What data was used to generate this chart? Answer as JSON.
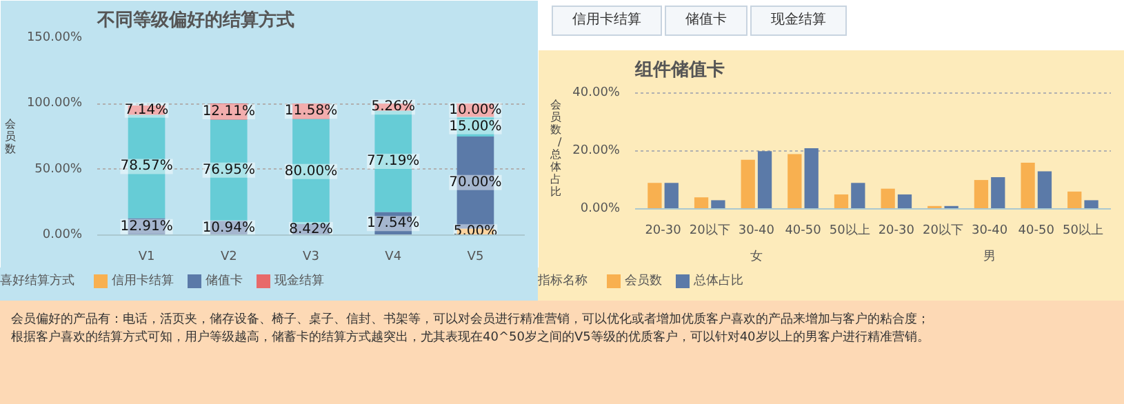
{
  "chart_data": [
    {
      "type": "bar",
      "title": "不同等级偏好的结算方式",
      "ylabel": "会员数",
      "legend_title": "喜好结算方式",
      "stacked": true,
      "legend": "bottom",
      "grid": "y",
      "categories": [
        "V1",
        "V2",
        "V3",
        "V4",
        "V5"
      ],
      "ylim": [
        0,
        150
      ],
      "yticks": [
        {
          "value": 0,
          "label": "0.00%"
        },
        {
          "value": 50,
          "label": "50.00%"
        },
        {
          "value": 100,
          "label": "100.00%"
        },
        {
          "value": 150,
          "label": "150.00%"
        }
      ],
      "series": [
        {
          "name": "信用卡结算",
          "color": "#f8b050",
          "values": [
            null,
            null,
            null,
            null,
            5.0
          ],
          "value_labels": [
            null,
            null,
            null,
            null,
            "5.00%"
          ]
        },
        {
          "name": "储值卡",
          "color": "#5b7aa8",
          "values": [
            12.91,
            10.94,
            8.42,
            17.54,
            70.0
          ],
          "value_labels": [
            "12.91%",
            "10.94%",
            "8.42%",
            "17.54%",
            "70.00%"
          ]
        },
        {
          "color": "#66ccd6",
          "values": [
            78.57,
            76.95,
            80.0,
            77.19,
            15.0
          ],
          "value_labels": [
            "78.57%",
            "76.95%",
            "80.00%",
            "77.19%",
            "15.00%"
          ]
        },
        {
          "name": "现金结算",
          "color": "#e86a6a",
          "values": [
            7.14,
            12.11,
            11.58,
            5.26,
            10.0
          ],
          "value_labels": [
            "7.14%",
            "12.11%",
            "11.58%",
            "5.26%",
            "10.00%"
          ]
        }
      ]
    },
    {
      "type": "other",
      "annotations": [
        "信用卡结算",
        "储值卡",
        "现金结算"
      ]
    },
    {
      "type": "bar",
      "title": "组件储值卡",
      "ylabel": "会员数/总体占比",
      "legend_title": "指标名称",
      "legend": "bottom",
      "grid": "y",
      "categories": [
        "20-30",
        "20以下",
        "30-40",
        "40-50",
        "50以上",
        "20-30",
        "20以下",
        "30-40",
        "40-50",
        "50以上"
      ],
      "annotations": [
        "女",
        "男"
      ],
      "ylim": [
        0,
        42
      ],
      "yticks": [
        {
          "value": 0,
          "label": "0.00%"
        },
        {
          "value": 20,
          "label": "20.00%"
        },
        {
          "value": 40,
          "label": "40.00%"
        }
      ],
      "series": [
        {
          "name": "会员数",
          "color": "#f8b050",
          "values": [
            9,
            4,
            17,
            19,
            5,
            7,
            1,
            10,
            16,
            6
          ]
        },
        {
          "name": "总体占比",
          "color": "#5b7aa8",
          "values": [
            9,
            3,
            20,
            21,
            9,
            5,
            1,
            11,
            13,
            3
          ]
        }
      ]
    },
    {
      "type": "other",
      "annotations": [
        "会员偏好的产品有：电话，活页夹，储存设备、椅子、桌子、信封、书架等，可以对会员进行精准营销，可以优化或者增加优质客户喜欢的产品来增加与客户的粘合度；",
        "根据客户喜欢的结算方式可知，用户等级越高，储蓄卡的结算方式越突出，尤其表现在40^50岁之间的V5等级的优质客户，可以针对40岁以上的男客户进行精准营销。"
      ]
    }
  ]
}
